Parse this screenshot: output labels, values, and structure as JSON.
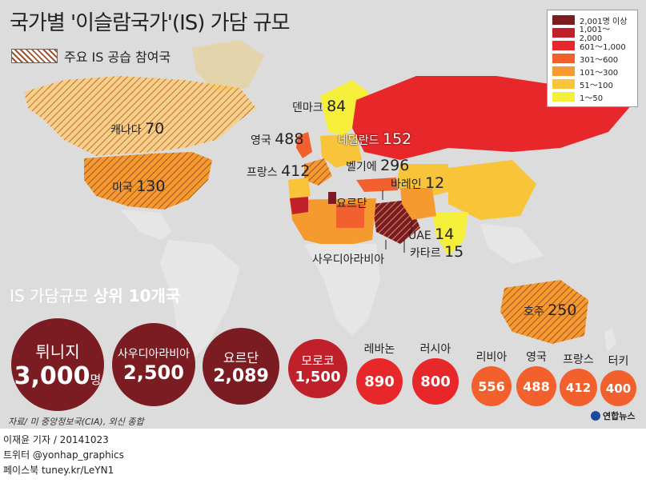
{
  "title": "국가별 '이슬람국가'(IS) 가담 규모",
  "subtitle": "주요 IS 공습 참여국",
  "legend": [
    {
      "label": "2,001명 이상",
      "color": "#7a1c22"
    },
    {
      "label": "1,001～2,000",
      "color": "#c0202a"
    },
    {
      "label": "601～1,000",
      "color": "#e8272a"
    },
    {
      "label": "301～600",
      "color": "#f2612d"
    },
    {
      "label": "101～300",
      "color": "#f59a2e"
    },
    {
      "label": "51～100",
      "color": "#f7c43a"
    },
    {
      "label": "1～50",
      "color": "#f5ee3a"
    }
  ],
  "map_labels": {
    "canada": {
      "name": "캐나다",
      "value": "70"
    },
    "usa": {
      "name": "미국",
      "value": "130"
    },
    "denmark": {
      "name": "덴마크",
      "value": "84"
    },
    "uk": {
      "name": "영국",
      "value": "488"
    },
    "netherlands": {
      "name": "네덜란드",
      "value": "152"
    },
    "france": {
      "name": "프랑스",
      "value": "412"
    },
    "belgium": {
      "name": "벨기에",
      "value": "296"
    },
    "bahrain": {
      "name": "바레인",
      "value": "12"
    },
    "jordan": {
      "name": "요르단",
      "value": ""
    },
    "uae": {
      "name": "UAE",
      "value": "14"
    },
    "saudi": {
      "name": "사우디아라비아",
      "value": ""
    },
    "qatar": {
      "name": "카타르",
      "value": "15"
    },
    "australia": {
      "name": "호주",
      "value": "250"
    }
  },
  "top10_title_prefix": "IS 가담규모 ",
  "top10_title_bold": "상위 10개국",
  "top10": [
    {
      "name": "튀니지",
      "value": "3,000",
      "unit": "명",
      "color": "#7a1c22"
    },
    {
      "name": "사우디아라비아",
      "value": "2,500",
      "unit": "",
      "color": "#7a1c22"
    },
    {
      "name": "요르단",
      "value": "2,089",
      "unit": "",
      "color": "#7a1c22"
    },
    {
      "name": "모로코",
      "value": "1,500",
      "unit": "",
      "color": "#c0202a"
    },
    {
      "name": "레바논",
      "value": "890",
      "unit": "",
      "color": "#e8272a"
    },
    {
      "name": "러시아",
      "value": "800",
      "unit": "",
      "color": "#e8272a"
    },
    {
      "name": "리비아",
      "value": "556",
      "unit": "",
      "color": "#f2612d"
    },
    {
      "name": "영국",
      "value": "488",
      "unit": "",
      "color": "#f2612d"
    },
    {
      "name": "프랑스",
      "value": "412",
      "unit": "",
      "color": "#f2612d"
    },
    {
      "name": "터키",
      "value": "400",
      "unit": "",
      "color": "#f2612d"
    }
  ],
  "source": "자료/ 미 중앙정보국(CIA), 외신 종합",
  "credit": [
    "이재윤 기자 / 20141023",
    "트위터 @yonhap_graphics",
    "페이스북 tuney.kr/LeYN1"
  ],
  "brand": "연합뉴스"
}
